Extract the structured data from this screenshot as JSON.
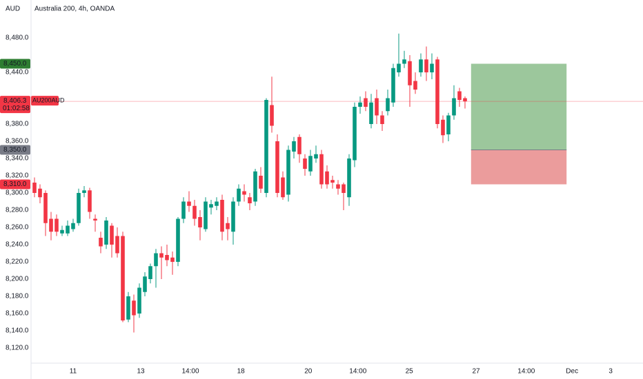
{
  "chart_data": {
    "type": "candlestick",
    "currency": "AUD",
    "title": "Australia 200, 4h, OANDA",
    "up_color": "#089981",
    "down_color": "#f23645",
    "open": [
      8312,
      8305,
      8300,
      8270,
      8270,
      8253,
      8253,
      8258,
      8265,
      8300,
      8303,
      8270,
      8248,
      8240,
      8262,
      8250,
      8250,
      8153,
      8175,
      8160,
      8185,
      8200,
      8215,
      8230,
      8228,
      8225,
      8220,
      8270,
      8290,
      8285,
      8272,
      8258,
      8283,
      8285,
      8292,
      8265,
      8255,
      8290,
      8302,
      8295,
      8290,
      8320,
      8300,
      8402,
      8360,
      8318,
      8298,
      8348,
      8365,
      8340,
      8325,
      8340,
      8345,
      8325,
      8315,
      8310,
      8310,
      8295,
      8338,
      8400,
      8410,
      8380,
      8410,
      8390,
      8395,
      8405,
      8440,
      8450,
      8453,
      8430,
      8440,
      8455,
      8440,
      8455,
      8385,
      8368,
      8390,
      8418,
      8410
    ],
    "high": [
      8318,
      8310,
      8303,
      8278,
      8275,
      8262,
      8268,
      8270,
      8305,
      8308,
      8306,
      8275,
      8255,
      8272,
      8265,
      8260,
      8255,
      8185,
      8182,
      8195,
      8208,
      8218,
      8235,
      8238,
      8240,
      8232,
      8272,
      8295,
      8302,
      8292,
      8280,
      8295,
      8292,
      8295,
      8298,
      8272,
      8295,
      8310,
      8310,
      8300,
      8328,
      8330,
      8410,
      8435,
      8368,
      8325,
      8355,
      8365,
      8368,
      8345,
      8350,
      8355,
      8350,
      8332,
      8320,
      8315,
      8312,
      8345,
      8405,
      8412,
      8418,
      8415,
      8420,
      8395,
      8420,
      8450,
      8485,
      8465,
      8460,
      8440,
      8462,
      8470,
      8462,
      8458,
      8390,
      8393,
      8425,
      8422,
      8412
    ],
    "low": [
      8295,
      8288,
      8250,
      8245,
      8250,
      8250,
      8250,
      8255,
      8262,
      8295,
      8270,
      8255,
      8230,
      8235,
      8225,
      8225,
      8150,
      8150,
      8138,
      8155,
      8180,
      8195,
      8190,
      8200,
      8215,
      8205,
      8215,
      8265,
      8278,
      8262,
      8245,
      8255,
      8275,
      8280,
      8245,
      8245,
      8240,
      8285,
      8290,
      8280,
      8285,
      8300,
      8295,
      8370,
      8295,
      8292,
      8290,
      8340,
      8335,
      8320,
      8320,
      8335,
      8305,
      8305,
      8305,
      8298,
      8280,
      8285,
      8330,
      8392,
      8395,
      8375,
      8380,
      8372,
      8390,
      8400,
      8435,
      8445,
      8400,
      8415,
      8435,
      8430,
      8432,
      8375,
      8358,
      8360,
      8385,
      8400,
      8398
    ],
    "close": [
      8300,
      8295,
      8265,
      8255,
      8255,
      8257,
      8262,
      8265,
      8300,
      8303,
      8278,
      8268,
      8238,
      8268,
      8240,
      8230,
      8152,
      8180,
      8158,
      8190,
      8203,
      8215,
      8230,
      8225,
      8222,
      8220,
      8270,
      8290,
      8285,
      8270,
      8260,
      8290,
      8287,
      8290,
      8255,
      8258,
      8290,
      8305,
      8298,
      8288,
      8325,
      8305,
      8408,
      8378,
      8300,
      8295,
      8350,
      8360,
      8345,
      8328,
      8343,
      8345,
      8310,
      8310,
      8312,
      8305,
      8300,
      8340,
      8400,
      8405,
      8400,
      8405,
      8390,
      8380,
      8410,
      8445,
      8450,
      8455,
      8425,
      8420,
      8455,
      8440,
      8450,
      8380,
      8367,
      8390,
      8410,
      8408,
      8406.3
    ],
    "xlim": [
      -0.625,
      110.25
    ],
    "xticks": [
      {
        "value": 7,
        "label": "11"
      },
      {
        "value": 19.25,
        "label": "13"
      },
      {
        "value": 28.25,
        "label": "14:00"
      },
      {
        "value": 37.4,
        "label": "18"
      },
      {
        "value": 49.6,
        "label": "20"
      },
      {
        "value": 58.6,
        "label": "14:00"
      },
      {
        "value": 67.9,
        "label": "25"
      },
      {
        "value": 80,
        "label": "27"
      },
      {
        "value": 89.1,
        "label": "14:00"
      },
      {
        "value": 97.4,
        "label": "Dec"
      },
      {
        "value": 104.4,
        "label": "3"
      }
    ],
    "ylim": [
      8102.4,
      8524
    ],
    "yticks": [
      {
        "value": 8480,
        "label": "8,480.0"
      },
      {
        "value": 8440,
        "label": "8,440.0"
      },
      {
        "value": 8380,
        "label": "8,380.0"
      },
      {
        "value": 8360,
        "label": "8,360.0"
      },
      {
        "value": 8340,
        "label": "8,340.0"
      },
      {
        "value": 8320,
        "label": "8,320.0"
      },
      {
        "value": 8300,
        "label": "8,300.0"
      },
      {
        "value": 8280,
        "label": "8,280.0"
      },
      {
        "value": 8260,
        "label": "8,260.0"
      },
      {
        "value": 8240,
        "label": "8,240.0"
      },
      {
        "value": 8220,
        "label": "8,220.0"
      },
      {
        "value": 8200,
        "label": "8,200.0"
      },
      {
        "value": 8180,
        "label": "8,180.0"
      },
      {
        "value": 8160,
        "label": "8,160.0"
      },
      {
        "value": 8140,
        "label": "8,140.0"
      },
      {
        "value": 8120,
        "label": "8,120.0"
      }
    ],
    "position": {
      "target": 8450,
      "entry": 8350,
      "stop": 8310,
      "start": 79.1,
      "end": 96.4,
      "target_color": "#9cc79c",
      "stop_color": "#eb9c9c"
    },
    "price_badges": [
      {
        "value": 8450,
        "label": "8,450.0",
        "color": "#2e7d32"
      },
      {
        "value": 8350,
        "label": "8,350.0",
        "color": "#787b86"
      },
      {
        "value": 8310,
        "label": "8,310.0",
        "color": "#f23645"
      }
    ],
    "last_price": {
      "value": 8406.3,
      "label": "8,406.3",
      "symbol": "AU200AUD",
      "countdown": "01:02:58",
      "color": "#f23645"
    }
  }
}
